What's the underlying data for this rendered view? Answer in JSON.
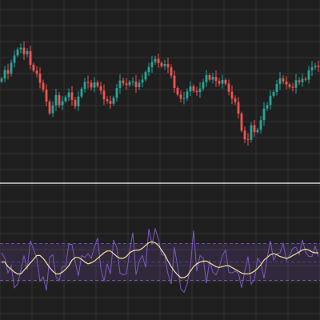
{
  "colors": {
    "background": "#1f1f1f",
    "grid": "#333333",
    "up": "#26a69a",
    "down": "#ef5350",
    "separator": "#d6d6d6",
    "band_fill": "#7e57c2",
    "band_line": "#7e57c2",
    "oscillator": "#7e57c2",
    "signal": "#f2e394"
  },
  "chart_data": [
    {
      "type": "candlestick",
      "title": "",
      "xlabel": "",
      "ylabel": "",
      "x": [
        0,
        1,
        2,
        3,
        4,
        5,
        6,
        7,
        8,
        9,
        10,
        11,
        12,
        13,
        14,
        15,
        16,
        17,
        18,
        19,
        20,
        21,
        22,
        23,
        24,
        25,
        26,
        27,
        28,
        29,
        30,
        31,
        32,
        33,
        34,
        35,
        36,
        37,
        38,
        39,
        40,
        41,
        42,
        43,
        44,
        45,
        46,
        47,
        48,
        49,
        50,
        51,
        52,
        53,
        54,
        55,
        56,
        57,
        58,
        59,
        60,
        61,
        62,
        63,
        64,
        65,
        66,
        67,
        68,
        69,
        70,
        71,
        72,
        73,
        74,
        75,
        76,
        77,
        78,
        79,
        80,
        81,
        82,
        83,
        84,
        85,
        86,
        87,
        88,
        89,
        90,
        91,
        92,
        93,
        94,
        95,
        96,
        97,
        98,
        99
      ],
      "close": [
        108.5,
        112.0,
        110.5,
        115.0,
        118.0,
        120.5,
        121.2,
        118.5,
        119.8,
        114.2,
        111.8,
        110.5,
        106.8,
        104.0,
        99.0,
        94.2,
        97.5,
        101.7,
        97.5,
        99.2,
        100.8,
        102.8,
        99.7,
        97.1,
        101.1,
        104.3,
        107.1,
        106.7,
        104.8,
        106.9,
        105.4,
        103.5,
        100.0,
        99.3,
        98.1,
        100.6,
        104.6,
        107.7,
        106.5,
        105.8,
        107.1,
        107.3,
        105.0,
        106.8,
        108.1,
        111.1,
        113.2,
        115.3,
        116.6,
        114.9,
        113.6,
        114.5,
        113.1,
        109.7,
        104.6,
        101.9,
        100.2,
        100.4,
        103.2,
        105.3,
        103.4,
        102.9,
        104.4,
        107.0,
        109.9,
        108.0,
        109.2,
        107.5,
        106.4,
        107.9,
        106.4,
        103.1,
        100.3,
        98.8,
        94.1,
        87.1,
        83.5,
        83.3,
        89.3,
        86.5,
        87.4,
        91.4,
        96.2,
        97.6,
        101.4,
        103.0,
        106.3,
        108.6,
        107.3,
        106.1,
        105.1,
        104.7,
        107.8,
        107.0,
        108.4,
        108.0,
        111.9,
        113.1,
        113.7,
        113.2
      ],
      "ylim": [
        75,
        126
      ]
    },
    {
      "type": "line",
      "title": "",
      "xlabel": "",
      "ylabel": "",
      "x": [
        0,
        1,
        2,
        3,
        4,
        5,
        6,
        7,
        8,
        9,
        10,
        11,
        12,
        13,
        14,
        15,
        16,
        17,
        18,
        19,
        20,
        21,
        22,
        23,
        24,
        25,
        26,
        27,
        28,
        29,
        30,
        31,
        32,
        33,
        34,
        35,
        36,
        37,
        38,
        39,
        40,
        41,
        42,
        43,
        44,
        45,
        46,
        47,
        48,
        49,
        50,
        51,
        52,
        53,
        54,
        55,
        56,
        57,
        58,
        59,
        60,
        61,
        62,
        63,
        64,
        65,
        66,
        67,
        68,
        69,
        70,
        71,
        72,
        73,
        74,
        75,
        76,
        77,
        78,
        79,
        80,
        81,
        82,
        83,
        84,
        85,
        86,
        87,
        88,
        89,
        90,
        91,
        92,
        93,
        94,
        95,
        96,
        97,
        98,
        99
      ],
      "series": [
        {
          "values": [
            60,
            54,
            38,
            46,
            22,
            26,
            41,
            57,
            42,
            73,
            64,
            54,
            29,
            34,
            19,
            55,
            58,
            34,
            30,
            45,
            45,
            69,
            69,
            50,
            35,
            57,
            55,
            59,
            54,
            66,
            76,
            43,
            29,
            48,
            37,
            74,
            66,
            38,
            36,
            37,
            61,
            82,
            36,
            51,
            57,
            44,
            86,
            69,
            86,
            75,
            58,
            57,
            37,
            26,
            66,
            45,
            21,
            17,
            26,
            45,
            84,
            40,
            57,
            54,
            27,
            52,
            39,
            36,
            44,
            57,
            63,
            39,
            38,
            40,
            38,
            22,
            40,
            56,
            26,
            31,
            54,
            49,
            32,
            55,
            73,
            52,
            59,
            60,
            70,
            52,
            57,
            65,
            66,
            58,
            74,
            61,
            56,
            56,
            67,
            56
          ]
        },
        {
          "values": [
            50,
            50,
            45,
            42,
            39,
            37,
            37,
            41,
            45,
            49,
            53,
            57,
            57,
            54,
            49,
            44,
            40,
            37,
            37,
            39,
            42,
            46,
            52,
            55,
            55,
            53,
            50,
            48,
            49,
            51,
            54,
            57,
            60,
            62,
            62,
            59,
            56,
            54,
            54,
            56,
            60,
            62,
            63,
            63,
            65,
            68,
            71,
            72,
            71,
            68,
            63,
            58,
            51,
            45,
            40,
            36,
            33,
            33,
            35,
            40,
            45,
            48,
            50,
            51,
            51,
            49,
            47,
            45,
            44,
            45,
            46,
            46,
            44,
            42,
            40,
            38,
            37,
            37,
            38,
            40,
            43,
            47,
            52,
            55,
            58,
            59,
            58,
            56,
            55,
            54,
            55,
            57,
            59,
            61,
            63,
            64,
            63,
            61,
            60,
            60
          ]
        }
      ],
      "ylim": [
        0,
        100
      ],
      "bands": [
        70,
        50,
        30
      ],
      "band_lines_dashed": true
    }
  ]
}
